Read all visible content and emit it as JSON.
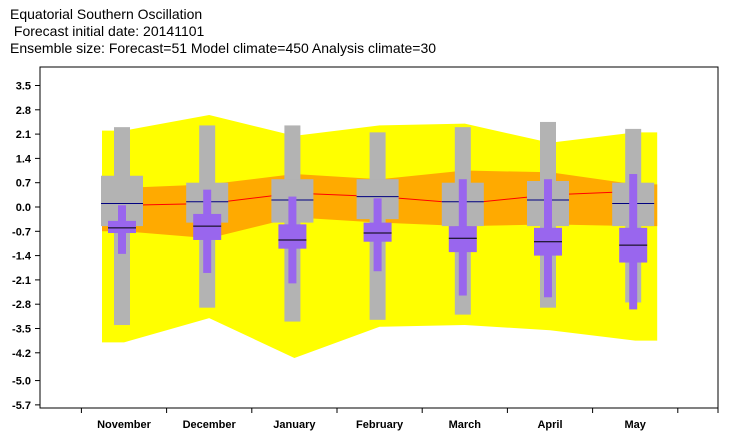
{
  "title_lines": [
    "Equatorial Southern Oscillation",
    " Forecast initial date: 20141101",
    "Ensemble size: Forecast=51 Model climate=450 Analysis climate=30"
  ],
  "colors": {
    "climate_outer": "#ffff00",
    "climate_inner": "#ffaa00",
    "model_box": "#b3b3b3",
    "forecast_box": "#9966ee",
    "median_line": "#000080",
    "analysis_line": "#ff0000"
  },
  "chart_data": {
    "type": "box",
    "categories": [
      "November",
      "December",
      "January",
      "February",
      "March",
      "April",
      "May"
    ],
    "yticks": [
      "3.5",
      "2.8",
      "2.1",
      "1.4",
      "0.7",
      "0.0",
      "-0.7",
      "-1.4",
      "-2.1",
      "-2.8",
      "-3.5",
      "-4.2",
      "-5.0",
      "-5.7"
    ],
    "ylim": [
      -5.7,
      4.0
    ],
    "analysis_climate_band": {
      "outer_upper": [
        2.2,
        2.65,
        2.05,
        2.35,
        2.4,
        1.85,
        2.15
      ],
      "outer_lower": [
        -3.9,
        -3.2,
        -4.35,
        -3.45,
        -3.4,
        -3.55,
        -3.85
      ],
      "inner_upper": [
        0.55,
        0.65,
        0.95,
        0.8,
        1.05,
        1.0,
        0.65
      ],
      "inner_lower": [
        -0.7,
        -0.9,
        -0.3,
        -0.45,
        -0.55,
        -0.5,
        -0.55
      ]
    },
    "analysis_median": [
      0.05,
      0.1,
      0.4,
      0.3,
      0.1,
      0.35,
      0.45
    ],
    "model_climate": {
      "whisker_high": [
        2.3,
        2.35,
        2.35,
        2.15,
        2.3,
        2.45,
        2.25
      ],
      "box_high": [
        0.9,
        0.7,
        0.8,
        0.8,
        0.7,
        0.75,
        0.7
      ],
      "median": [
        0.1,
        0.15,
        0.2,
        0.3,
        0.15,
        0.2,
        0.1
      ],
      "box_low": [
        -0.55,
        -0.45,
        -0.45,
        -0.35,
        -0.55,
        -0.55,
        -0.55
      ],
      "whisker_low": [
        -3.4,
        -2.9,
        -3.3,
        -3.25,
        -3.1,
        -2.9,
        -2.75
      ]
    },
    "forecast": {
      "whisker_high": [
        0.05,
        0.5,
        0.3,
        0.25,
        0.8,
        0.8,
        0.95
      ],
      "box_high": [
        -0.4,
        -0.2,
        -0.5,
        -0.45,
        -0.55,
        -0.6,
        -0.6
      ],
      "median": [
        -0.6,
        -0.55,
        -0.95,
        -0.75,
        -0.9,
        -1.0,
        -1.1
      ],
      "box_low": [
        -0.75,
        -0.95,
        -1.2,
        -1.0,
        -1.3,
        -1.4,
        -1.6
      ],
      "whisker_low": [
        -1.35,
        -1.9,
        -2.2,
        -1.85,
        -2.55,
        -2.6,
        -2.95
      ]
    }
  }
}
